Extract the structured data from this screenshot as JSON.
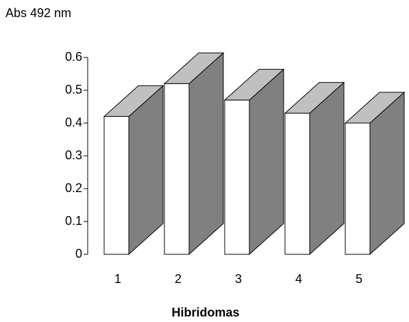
{
  "chart_data": {
    "type": "bar3d",
    "y_label": "Abs 492 nm",
    "x_label": "Hibridomas",
    "categories": [
      "1",
      "2",
      "3",
      "4",
      "5"
    ],
    "values": [
      0.42,
      0.52,
      0.47,
      0.43,
      0.4
    ],
    "ylim": [
      0,
      0.6
    ],
    "yticks": [
      0,
      0.1,
      0.2,
      0.3,
      0.4,
      0.5,
      0.6
    ],
    "color": "#ffffff",
    "side_color": "#808080",
    "top_color": "#c0c0c0"
  }
}
